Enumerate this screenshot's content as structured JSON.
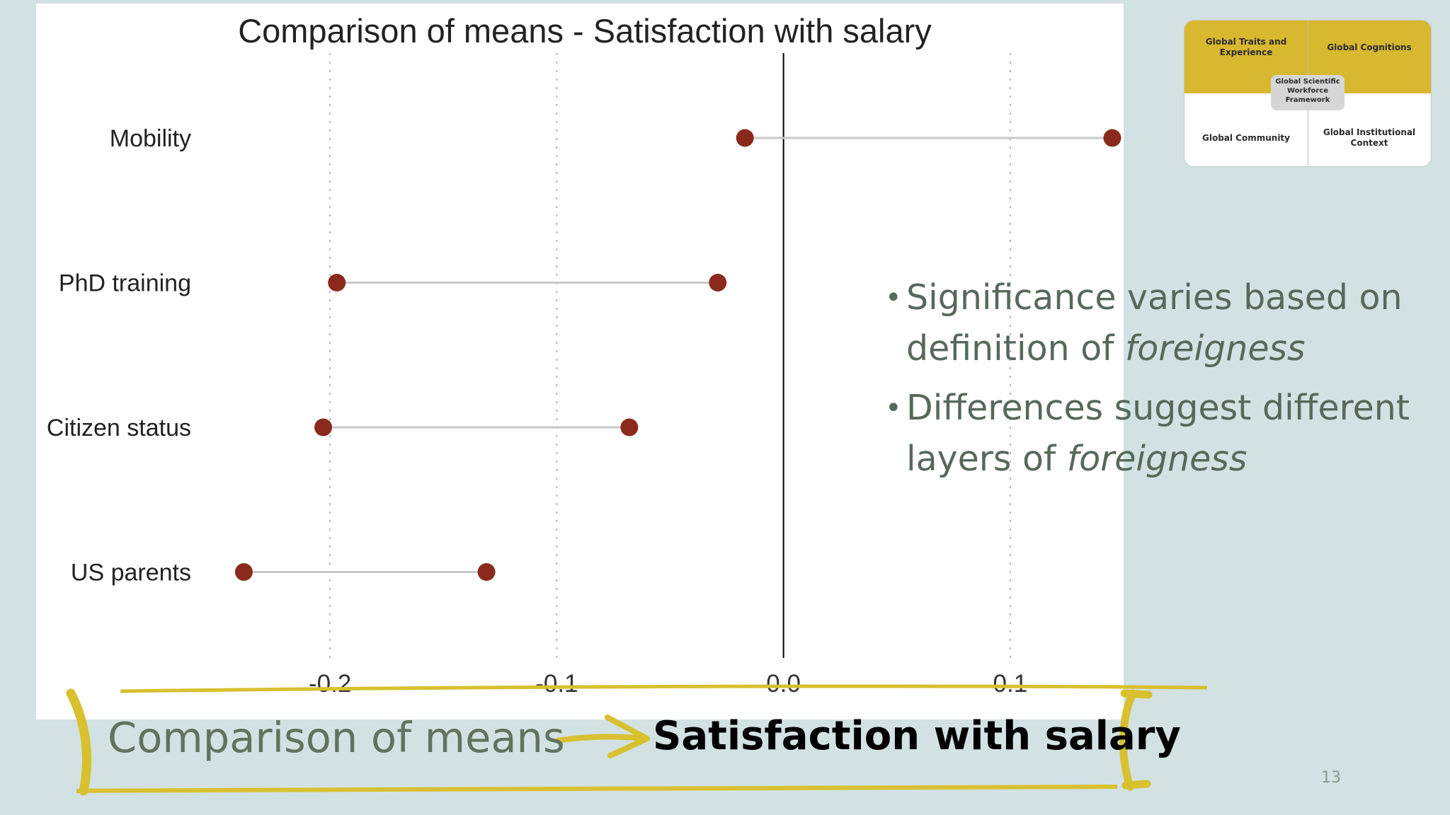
{
  "chart_data": {
    "type": "dumbbell",
    "title": "Comparison of means - Satisfaction with salary",
    "categories": [
      "Mobility",
      "PhD training",
      "Citizen status",
      "US parents"
    ],
    "series": [
      {
        "low": -0.017,
        "high": 0.145
      },
      {
        "low": -0.197,
        "high": -0.029
      },
      {
        "low": -0.203,
        "high": -0.068
      },
      {
        "low": -0.238,
        "high": -0.131
      }
    ],
    "xlim": [
      -0.25,
      0.15
    ],
    "x_ticks": [
      -0.2,
      -0.1,
      0.0,
      0.1
    ],
    "x_tick_labels": [
      "-0.2",
      "-0.1",
      "0.0",
      "0.1"
    ],
    "reference_line": 0.0,
    "grid": "vertical dotted",
    "colors": {
      "point": "#8b2a1c",
      "line": "#c8c8c8",
      "grid": "#b5b5b5",
      "reference": "#000000"
    }
  },
  "bullets": [
    {
      "text": "Significance varies based on definition of ",
      "emph": "foreigness"
    },
    {
      "text": "Differences suggest different layers of ",
      "emph": "foreigness"
    }
  ],
  "framework": {
    "top_left": "Global Traits and Experience",
    "top_right": "Global Cognitions",
    "center": "Global Scientific Workforce Framework",
    "bottom_left": "Global Community",
    "bottom_right": "Global Institutional Context",
    "colors": {
      "top": "#d8b82f",
      "center": "#d6d6d6"
    }
  },
  "footer": {
    "left": "Comparison of means",
    "right": "Satisfaction with salary",
    "accent": "#d8c02f"
  },
  "slide_number": "13"
}
